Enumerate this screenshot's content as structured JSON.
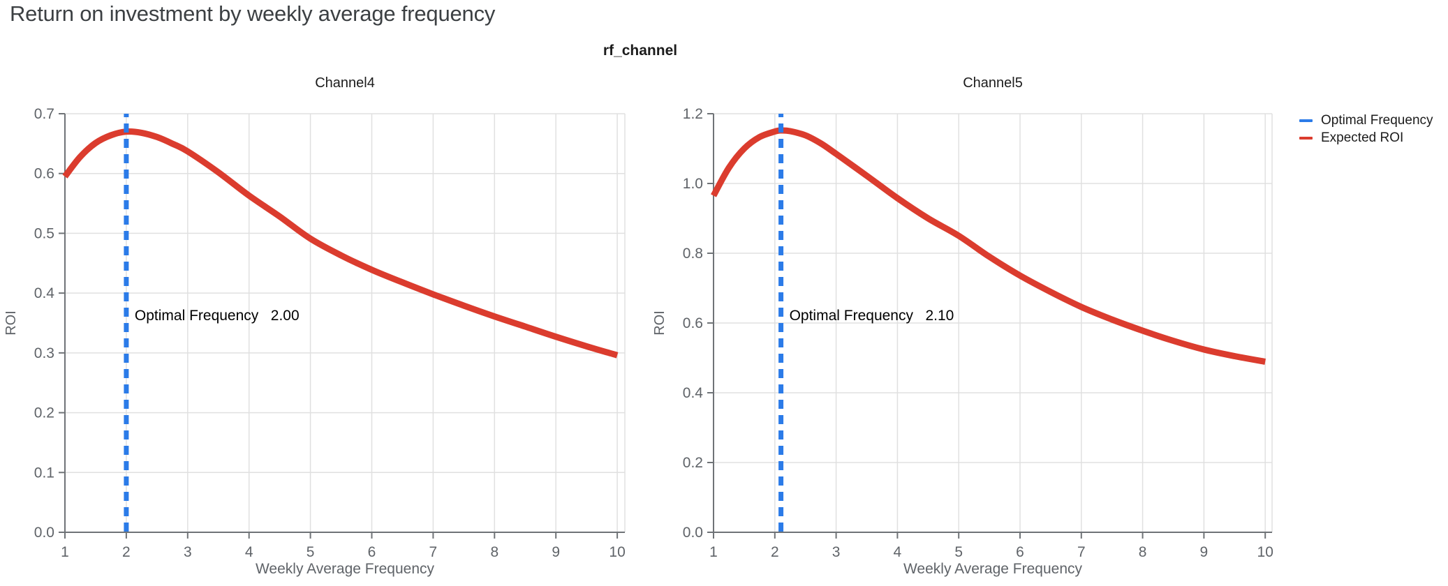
{
  "page": {
    "title": "Return on investment by weekly average frequency",
    "subtitle": "rf_channel"
  },
  "legend": {
    "items": [
      {
        "label": "Optimal Frequency",
        "color": "#2b7be8"
      },
      {
        "label": "Expected ROI",
        "color": "#db3c2e"
      }
    ]
  },
  "colors": {
    "optimal_line": "#2b7be8",
    "roi_curve": "#db3c2e",
    "grid": "#e0e0e0",
    "axis": "#6f7377",
    "tick_label": "#5f6368",
    "axis_title": "#5f6368",
    "chart_title": "#1c1c1c",
    "annotation": "#000000",
    "page_title": "#3c4043"
  },
  "chart_data": [
    {
      "type": "line",
      "title": "Channel4",
      "xlabel": "Weekly Average Frequency",
      "ylabel": "ROI",
      "xlim": [
        1,
        10.13
      ],
      "ylim": [
        0,
        0.7
      ],
      "xticks": [
        1,
        2,
        3,
        4,
        5,
        6,
        7,
        8,
        9,
        10
      ],
      "yticks": [
        0.0,
        0.1,
        0.2,
        0.3,
        0.4,
        0.5,
        0.6,
        0.7
      ],
      "grid": true,
      "optimal_frequency": 2.0,
      "annotation": {
        "label": "Optimal Frequency",
        "value": "2.00"
      },
      "series": [
        {
          "name": "Expected ROI",
          "points": [
            [
              1,
              0.595
            ],
            [
              1.25,
              0.628
            ],
            [
              1.5,
              0.651
            ],
            [
              1.75,
              0.664
            ],
            [
              2,
              0.67
            ],
            [
              2.25,
              0.668
            ],
            [
              2.5,
              0.661
            ],
            [
              2.75,
              0.65
            ],
            [
              3,
              0.637
            ],
            [
              3.5,
              0.602
            ],
            [
              4,
              0.563
            ],
            [
              4.5,
              0.528
            ],
            [
              5,
              0.491
            ],
            [
              5.5,
              0.463
            ],
            [
              6,
              0.439
            ],
            [
              6.5,
              0.418
            ],
            [
              7,
              0.398
            ],
            [
              7.5,
              0.379
            ],
            [
              8,
              0.361
            ],
            [
              8.5,
              0.344
            ],
            [
              9,
              0.327
            ],
            [
              9.5,
              0.311
            ],
            [
              10,
              0.296
            ]
          ]
        }
      ]
    },
    {
      "type": "line",
      "title": "Channel5",
      "xlabel": "Weekly Average Frequency",
      "ylabel": "ROI",
      "xlim": [
        1,
        10.13
      ],
      "ylim": [
        0,
        1.2
      ],
      "xticks": [
        1,
        2,
        3,
        4,
        5,
        6,
        7,
        8,
        9,
        10
      ],
      "yticks": [
        0.0,
        0.2,
        0.4,
        0.6,
        0.8,
        1.0,
        1.2
      ],
      "grid": true,
      "optimal_frequency": 2.1,
      "annotation": {
        "label": "Optimal Frequency",
        "value": "2.10"
      },
      "series": [
        {
          "name": "Expected ROI",
          "points": [
            [
              1,
              0.965
            ],
            [
              1.25,
              1.045
            ],
            [
              1.5,
              1.1
            ],
            [
              1.75,
              1.133
            ],
            [
              2,
              1.149
            ],
            [
              2.1,
              1.152
            ],
            [
              2.25,
              1.15
            ],
            [
              2.5,
              1.138
            ],
            [
              2.75,
              1.115
            ],
            [
              3,
              1.085
            ],
            [
              3.5,
              1.022
            ],
            [
              4,
              0.958
            ],
            [
              4.5,
              0.9
            ],
            [
              5,
              0.85
            ],
            [
              5.5,
              0.79
            ],
            [
              6,
              0.736
            ],
            [
              6.5,
              0.689
            ],
            [
              7,
              0.646
            ],
            [
              7.5,
              0.61
            ],
            [
              8,
              0.578
            ],
            [
              8.5,
              0.549
            ],
            [
              9,
              0.524
            ],
            [
              9.5,
              0.505
            ],
            [
              10,
              0.489
            ]
          ]
        }
      ]
    }
  ]
}
